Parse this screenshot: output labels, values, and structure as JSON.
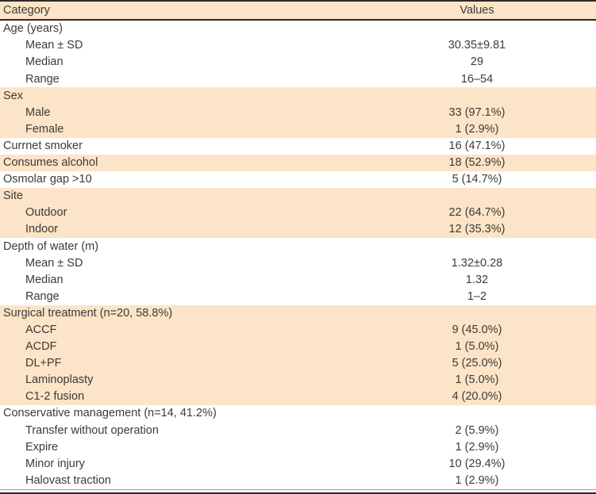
{
  "table": {
    "header": {
      "category": "Category",
      "values": "Values"
    },
    "rows": [
      {
        "label": "Age (years)",
        "value": "",
        "indent": 0,
        "shaded": 0
      },
      {
        "label": "Mean ± SD",
        "value": "30.35±9.81",
        "indent": 1,
        "shaded": 0
      },
      {
        "label": "Median",
        "value": "29",
        "indent": 1,
        "shaded": 0
      },
      {
        "label": "Range",
        "value": "16–54",
        "indent": 1,
        "shaded": 0
      },
      {
        "label": "Sex",
        "value": "",
        "indent": 0,
        "shaded": 1
      },
      {
        "label": "Male",
        "value": "33 (97.1%)",
        "indent": 1,
        "shaded": 1
      },
      {
        "label": "Female",
        "value": "1 (2.9%)",
        "indent": 1,
        "shaded": 1
      },
      {
        "label": "Currnet smoker",
        "value": "16 (47.1%)",
        "indent": 0,
        "shaded": 0
      },
      {
        "label": "Consumes alcohol",
        "value": "18 (52.9%)",
        "indent": 0,
        "shaded": 1
      },
      {
        "label": "Osmolar gap >10",
        "value": "5 (14.7%)",
        "indent": 0,
        "shaded": 0
      },
      {
        "label": "Site",
        "value": "",
        "indent": 0,
        "shaded": 1
      },
      {
        "label": "Outdoor",
        "value": "22 (64.7%)",
        "indent": 1,
        "shaded": 1
      },
      {
        "label": "Indoor",
        "value": "12 (35.3%)",
        "indent": 1,
        "shaded": 1
      },
      {
        "label": "Depth of water (m)",
        "value": "",
        "indent": 0,
        "shaded": 0
      },
      {
        "label": "Mean ± SD",
        "value": "1.32±0.28",
        "indent": 1,
        "shaded": 0
      },
      {
        "label": "Median",
        "value": "1.32",
        "indent": 1,
        "shaded": 0
      },
      {
        "label": "Range",
        "value": "1–2",
        "indent": 1,
        "shaded": 0
      },
      {
        "label": "Surgical treatment (n=20, 58.8%)",
        "value": "",
        "indent": 0,
        "shaded": 1
      },
      {
        "label": "ACCF",
        "value": "9 (45.0%)",
        "indent": 1,
        "shaded": 1
      },
      {
        "label": "ACDF",
        "value": "1 (5.0%)",
        "indent": 1,
        "shaded": 1
      },
      {
        "label": "DL+PF",
        "value": "5 (25.0%)",
        "indent": 1,
        "shaded": 1
      },
      {
        "label": "Laminoplasty",
        "value": "1 (5.0%)",
        "indent": 1,
        "shaded": 1
      },
      {
        "label": "C1-2 fusion",
        "value": "4 (20.0%)",
        "indent": 1,
        "shaded": 1
      },
      {
        "label": "Conservative management (n=14, 41.2%)",
        "value": "",
        "indent": 0,
        "shaded": 0
      },
      {
        "label": "Transfer without operation",
        "value": "2 (5.9%)",
        "indent": 1,
        "shaded": 0
      },
      {
        "label": "Expire",
        "value": "1 (2.9%)",
        "indent": 1,
        "shaded": 0
      },
      {
        "label": "Minor injury",
        "value": "10 (29.4%)",
        "indent": 1,
        "shaded": 0
      },
      {
        "label": "Halovast traction",
        "value": "1 (2.9%)",
        "indent": 1,
        "shaded": 0
      }
    ],
    "colors": {
      "band": "#fbe4c7",
      "text": "#3e3a36",
      "rule": "#2e2a26",
      "thin_rule": "#9b9793",
      "background": "#ffffff"
    }
  }
}
